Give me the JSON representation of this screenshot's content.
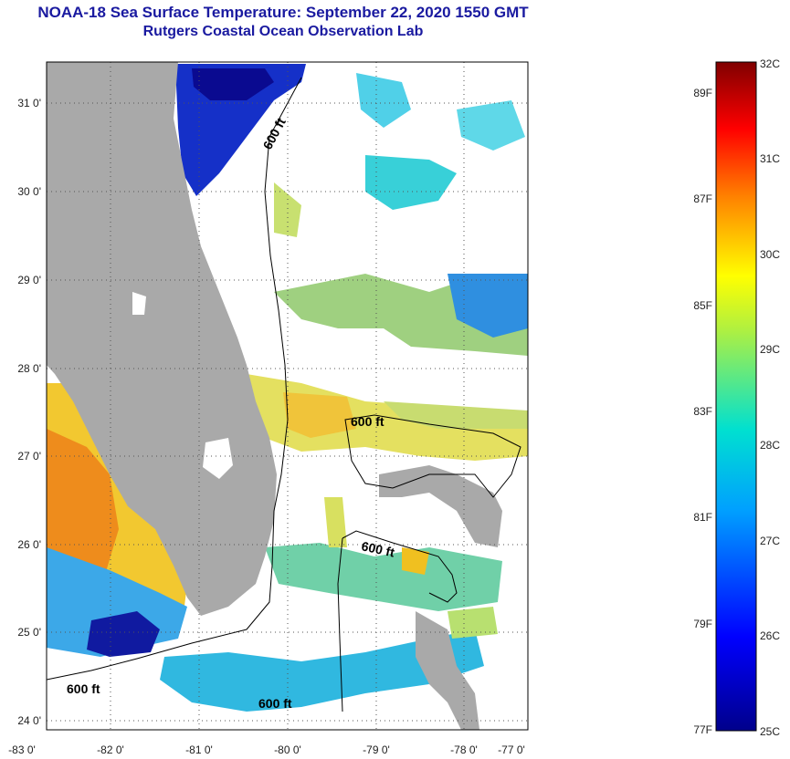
{
  "header": {
    "title": "NOAA-18 Sea Surface Temperature:  September 22, 2020 1550 GMT",
    "subtitle": "Rutgers Coastal Ocean Observation Lab"
  },
  "map": {
    "lat_labels": [
      "31 0'",
      "30 0'",
      "29 0'",
      "28 0'",
      "27 0'",
      "26 0'",
      "25 0'",
      "24 0'"
    ],
    "lon_labels": [
      "-83 0'",
      "-82 0'",
      "-81 0'",
      "-80 0'",
      "-79 0'",
      "-78 0'",
      "-77 0'"
    ],
    "isobath_labels": [
      "600 ft",
      "600 ft",
      "600 ft",
      "600 ft",
      "600 ft"
    ],
    "land_color": "#a9a9a9",
    "cloud_color": "#ffffff"
  },
  "colorbar": {
    "celsius_labels": [
      "32C",
      "31C",
      "30C",
      "29C",
      "28C",
      "27C",
      "26C",
      "25C"
    ],
    "fahrenheit_labels": [
      "89F",
      "87F",
      "85F",
      "83F",
      "81F",
      "79F",
      "77F"
    ],
    "min_color": "#00008b",
    "max_color": "#800000"
  }
}
